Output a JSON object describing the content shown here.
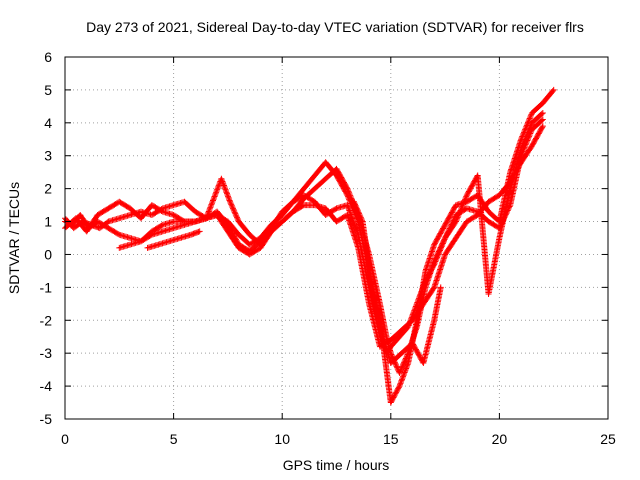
{
  "chart_data": {
    "type": "scatter",
    "title": "Day 273 of 2021, Sidereal Day-to-day VTEC variation (SDTVAR) for receiver flrs",
    "xlabel": "GPS time / hours",
    "ylabel": "SDTVAR / TECUs",
    "xlim": [
      0,
      25
    ],
    "ylim": [
      -5,
      6
    ],
    "xticks": [
      0,
      5,
      10,
      15,
      20,
      25
    ],
    "yticks": [
      -5,
      -4,
      -3,
      -2,
      -1,
      0,
      1,
      2,
      3,
      4,
      5,
      6
    ],
    "grid": true,
    "marker": "plus",
    "color": "#ff0000",
    "series": [
      {
        "points": [
          [
            0,
            1.1
          ],
          [
            0.4,
            0.8
          ],
          [
            0.8,
            1.0
          ],
          [
            1.2,
            0.9
          ],
          [
            1.6,
            0.8
          ],
          [
            2.0,
            1.0
          ],
          [
            2.5,
            1.1
          ],
          [
            3.0,
            1.2
          ],
          [
            3.5,
            1.3
          ],
          [
            4.0,
            1.2
          ],
          [
            4.5,
            1.4
          ],
          [
            5.0,
            1.5
          ],
          [
            5.5,
            1.6
          ],
          [
            6.0,
            1.3
          ],
          [
            6.5,
            1.1
          ],
          [
            7.0,
            1.2
          ],
          [
            7.5,
            1.0
          ],
          [
            8.0,
            0.6
          ],
          [
            8.5,
            0.3
          ],
          [
            9.0,
            0.5
          ],
          [
            9.5,
            0.9
          ],
          [
            10.0,
            1.2
          ],
          [
            10.5,
            1.6
          ],
          [
            11.0,
            2.0
          ],
          [
            11.5,
            2.4
          ],
          [
            12.0,
            2.8
          ],
          [
            12.5,
            2.4
          ],
          [
            13.0,
            1.8
          ],
          [
            13.5,
            1.0
          ],
          [
            14.0,
            -0.5
          ],
          [
            14.5,
            -2.0
          ],
          [
            14.8,
            -3.5
          ],
          [
            15.0,
            -4.5
          ],
          [
            15.4,
            -4.0
          ],
          [
            15.8,
            -3.3
          ],
          [
            16.2,
            -2.0
          ],
          [
            16.6,
            -0.5
          ],
          [
            17.0,
            0.3
          ],
          [
            17.5,
            0.9
          ],
          [
            18.0,
            1.5
          ],
          [
            18.5,
            1.6
          ],
          [
            19.0,
            1.8
          ],
          [
            19.5,
            1.3
          ],
          [
            20.0,
            1.0
          ],
          [
            20.5,
            2.5
          ],
          [
            21.0,
            3.5
          ],
          [
            21.5,
            4.3
          ],
          [
            22.0,
            4.6
          ],
          [
            22.5,
            5.0
          ]
        ]
      },
      {
        "points": [
          [
            0,
            0.8
          ],
          [
            0.5,
            1.1
          ],
          [
            1.0,
            0.7
          ],
          [
            1.5,
            1.2
          ],
          [
            2.0,
            1.4
          ],
          [
            2.5,
            1.6
          ],
          [
            3.0,
            1.4
          ],
          [
            3.5,
            1.1
          ],
          [
            4.0,
            1.5
          ],
          [
            4.5,
            1.3
          ],
          [
            5.0,
            1.2
          ],
          [
            5.5,
            1.0
          ],
          [
            6.0,
            1.0
          ],
          [
            6.5,
            1.1
          ],
          [
            7.2,
            2.3
          ],
          [
            7.6,
            1.6
          ],
          [
            8.0,
            1.0
          ],
          [
            8.5,
            0.6
          ],
          [
            9.0,
            0.3
          ],
          [
            9.5,
            0.7
          ],
          [
            10.0,
            1.0
          ],
          [
            10.5,
            1.3
          ],
          [
            11.0,
            1.7
          ],
          [
            11.5,
            2.0
          ],
          [
            12.0,
            2.3
          ],
          [
            12.5,
            2.6
          ],
          [
            13.0,
            2.0
          ],
          [
            13.5,
            1.2
          ],
          [
            14.0,
            0.0
          ],
          [
            14.5,
            -1.5
          ],
          [
            14.8,
            -2.5
          ],
          [
            15.0,
            -3.0
          ],
          [
            15.4,
            -3.6
          ],
          [
            15.8,
            -3.0
          ],
          [
            16.2,
            -2.2
          ],
          [
            16.6,
            -1.0
          ],
          [
            17.0,
            -0.2
          ],
          [
            17.5,
            0.5
          ],
          [
            18.0,
            1.0
          ],
          [
            18.5,
            1.8
          ],
          [
            19.0,
            2.4
          ],
          [
            19.5,
            -1.2
          ],
          [
            20.0,
            0.5
          ],
          [
            20.5,
            2.0
          ],
          [
            21.0,
            3.2
          ],
          [
            21.5,
            4.0
          ],
          [
            22.0,
            4.3
          ]
        ]
      },
      {
        "points": [
          [
            0,
            1.0
          ],
          [
            0.3,
            0.9
          ],
          [
            0.7,
            1.2
          ],
          [
            1.1,
            0.8
          ],
          [
            1.5,
            1.0
          ],
          [
            2.0,
            0.8
          ],
          [
            2.5,
            0.6
          ],
          [
            3.0,
            0.5
          ],
          [
            3.5,
            0.4
          ],
          [
            4.0,
            0.6
          ],
          [
            4.5,
            0.7
          ],
          [
            5.0,
            0.8
          ],
          [
            5.5,
            0.9
          ],
          [
            6.0,
            1.0
          ],
          [
            6.5,
            1.1
          ],
          [
            7.0,
            1.3
          ],
          [
            7.5,
            0.9
          ],
          [
            8.0,
            0.3
          ],
          [
            8.5,
            0.1
          ],
          [
            9.0,
            0.4
          ],
          [
            9.5,
            0.8
          ],
          [
            10.0,
            1.3
          ],
          [
            10.5,
            1.6
          ],
          [
            11.0,
            1.8
          ],
          [
            11.5,
            1.6
          ],
          [
            12.0,
            1.2
          ],
          [
            12.5,
            1.4
          ],
          [
            13.0,
            1.5
          ],
          [
            13.5,
            0.6
          ],
          [
            14.0,
            -1.0
          ],
          [
            14.5,
            -2.5
          ],
          [
            14.8,
            -3.0
          ],
          [
            15.0,
            -2.8
          ],
          [
            15.4,
            -2.5
          ],
          [
            15.8,
            -2.2
          ],
          [
            16.2,
            -1.5
          ],
          [
            16.6,
            -0.8
          ],
          [
            17.0,
            -0.3
          ],
          [
            17.5,
            0.5
          ],
          [
            18.0,
            1.2
          ],
          [
            18.5,
            1.4
          ],
          [
            19.0,
            1.3
          ],
          [
            19.5,
            1.0
          ],
          [
            20.0,
            0.8
          ],
          [
            20.5,
            1.5
          ],
          [
            21.0,
            3.0
          ],
          [
            21.5,
            3.8
          ],
          [
            22.0,
            4.1
          ]
        ]
      },
      {
        "points": [
          [
            2.5,
            0.2
          ],
          [
            3.0,
            0.3
          ],
          [
            3.5,
            0.4
          ],
          [
            4.0,
            0.7
          ],
          [
            4.5,
            0.9
          ],
          [
            5.0,
            1.0
          ],
          [
            5.5,
            1.0
          ],
          [
            6.0,
            1.0
          ],
          [
            6.5,
            1.1
          ],
          [
            7.0,
            1.2
          ],
          [
            7.5,
            0.7
          ],
          [
            8.0,
            0.2
          ],
          [
            8.5,
            0.0
          ],
          [
            9.0,
            0.2
          ],
          [
            9.5,
            0.7
          ],
          [
            10.0,
            1.0
          ],
          [
            10.5,
            1.3
          ],
          [
            11.0,
            1.5
          ],
          [
            11.5,
            1.5
          ],
          [
            12.0,
            1.4
          ],
          [
            12.5,
            1.0
          ],
          [
            13.0,
            1.2
          ],
          [
            13.5,
            0.2
          ],
          [
            14.0,
            -1.5
          ],
          [
            14.5,
            -2.8
          ],
          [
            15.0,
            -2.6
          ],
          [
            15.5,
            -2.3
          ],
          [
            16.0,
            -2.0
          ],
          [
            16.5,
            -1.5
          ],
          [
            17.0,
            -1.0
          ],
          [
            17.5,
            0.0
          ],
          [
            18.0,
            0.5
          ],
          [
            18.5,
            1.0
          ],
          [
            19.0,
            1.2
          ],
          [
            19.5,
            1.6
          ],
          [
            20.0,
            1.8
          ],
          [
            20.5,
            2.2
          ],
          [
            21.0,
            2.8
          ],
          [
            21.5,
            3.3
          ],
          [
            22.0,
            3.9
          ]
        ]
      },
      {
        "points": [
          [
            3.8,
            0.2
          ],
          [
            4.3,
            0.3
          ],
          [
            4.8,
            0.4
          ],
          [
            5.3,
            0.5
          ],
          [
            5.8,
            0.6
          ],
          [
            6.2,
            0.7
          ],
          [
            13.3,
            1.6
          ],
          [
            13.7,
            1.0
          ],
          [
            14.1,
            -0.8
          ],
          [
            14.5,
            -2.2
          ],
          [
            15.0,
            -3.3
          ],
          [
            15.5,
            -3.0
          ],
          [
            16.0,
            -2.7
          ],
          [
            16.5,
            -3.3
          ],
          [
            17.0,
            -2.0
          ],
          [
            17.3,
            -1.0
          ]
        ]
      }
    ]
  }
}
